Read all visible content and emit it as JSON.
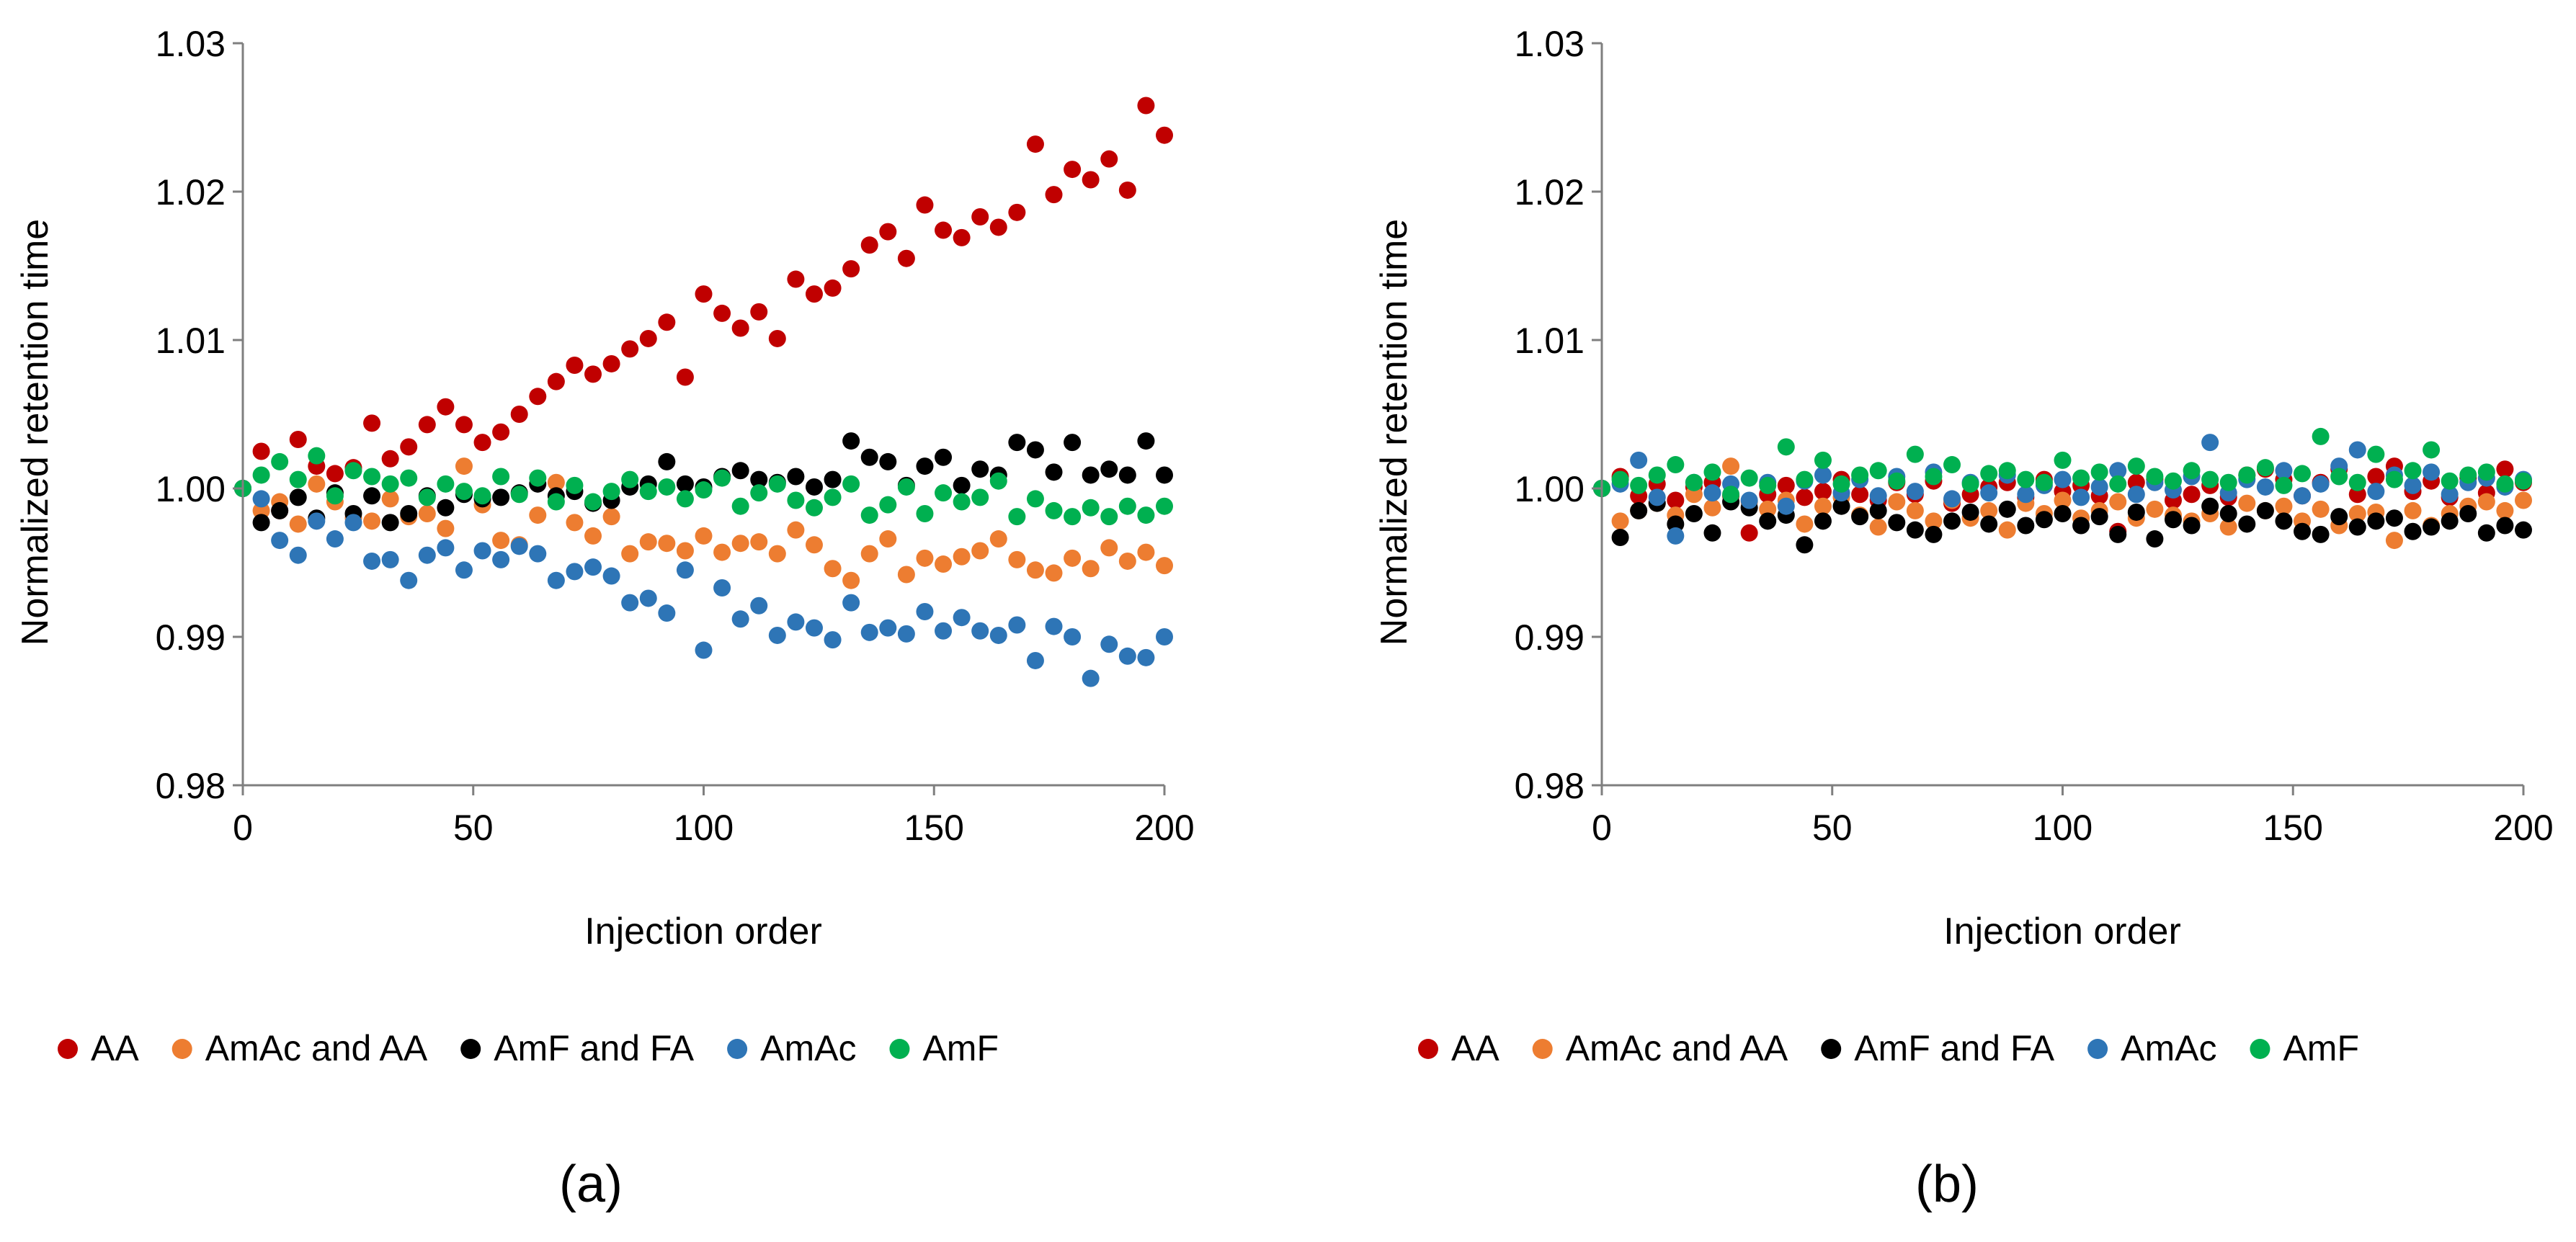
{
  "colors": {
    "AA": "#c00000",
    "AmAc and AA": "#ed7d31",
    "AmF and FA": "#000000",
    "AmAc": "#2e75b6",
    "AmF": "#00b050",
    "axis": "#7f7f7f"
  },
  "chart_data": [
    {
      "type": "scatter",
      "panel_label": "(a)",
      "xlabel": "Injection order",
      "ylabel": "Normalized retention time",
      "xlim": [
        0,
        200
      ],
      "ylim": [
        0.98,
        1.03
      ],
      "xticks": [
        0,
        50,
        100,
        150,
        200
      ],
      "xtick_labels": [
        "0",
        "50",
        "100",
        "150",
        "200"
      ],
      "yticks": [
        0.98,
        0.99,
        1.0,
        1.01,
        1.02,
        1.03
      ],
      "ytick_labels": [
        "0.98",
        "0.99",
        "1.00",
        "1.01",
        "1.02",
        "1.03"
      ],
      "grid": false,
      "legend_position": "bottom",
      "x": [
        0,
        4,
        8,
        12,
        16,
        20,
        24,
        28,
        32,
        36,
        40,
        44,
        48,
        52,
        56,
        60,
        64,
        68,
        72,
        76,
        80,
        84,
        88,
        92,
        96,
        100,
        104,
        108,
        112,
        116,
        120,
        124,
        128,
        132,
        136,
        140,
        144,
        148,
        152,
        156,
        160,
        164,
        168,
        172,
        176,
        180,
        184,
        188,
        192,
        196,
        200
      ],
      "series": [
        {
          "name": "AA",
          "values": [
            1.0,
            1.0025,
            0.9985,
            1.0033,
            1.0015,
            1.001,
            1.0014,
            1.0044,
            1.002,
            1.0028,
            1.0043,
            1.0055,
            1.0043,
            1.0031,
            1.0038,
            1.005,
            1.0062,
            1.0072,
            1.0083,
            1.0077,
            1.0084,
            1.0094,
            1.0101,
            1.0112,
            1.0075,
            1.0131,
            1.0118,
            1.0108,
            1.0119,
            1.0101,
            1.0141,
            1.0131,
            1.0135,
            1.0148,
            1.0164,
            1.0173,
            1.0155,
            1.0191,
            1.0174,
            1.0169,
            1.0183,
            1.0176,
            1.0186,
            1.0232,
            1.0198,
            1.0215,
            1.0208,
            1.0222,
            1.0201,
            1.0258,
            1.0238
          ]
        },
        {
          "name": "AmAc and AA",
          "values": [
            1.0,
            0.9985,
            0.9991,
            0.9976,
            1.0003,
            0.9991,
            0.998,
            0.9978,
            0.9993,
            0.9981,
            0.9983,
            0.9973,
            1.0015,
            0.9989,
            0.9965,
            0.9962,
            0.9982,
            1.0004,
            0.9977,
            0.9968,
            0.9981,
            0.9956,
            0.9964,
            0.9963,
            0.9958,
            0.9968,
            0.9957,
            0.9963,
            0.9964,
            0.9956,
            0.9972,
            0.9962,
            0.9946,
            0.9938,
            0.9956,
            0.9966,
            0.9942,
            0.9953,
            0.9949,
            0.9954,
            0.9958,
            0.9966,
            0.9952,
            0.9945,
            0.9943,
            0.9953,
            0.9946,
            0.996,
            0.9951,
            0.9957,
            0.9948
          ]
        },
        {
          "name": "AmF and FA",
          "values": [
            1.0,
            0.9977,
            0.9985,
            0.9994,
            0.998,
            0.9997,
            0.9983,
            0.9995,
            0.9977,
            0.9983,
            0.9995,
            0.9987,
            0.9996,
            0.9993,
            0.9994,
            0.9997,
            1.0003,
            0.9995,
            0.9998,
            0.999,
            0.9992,
            1.0001,
            1.0003,
            1.0018,
            1.0003,
            1.0001,
            1.0008,
            1.0012,
            1.0006,
            1.0004,
            1.0008,
            1.0001,
            1.0006,
            1.0032,
            1.0021,
            1.0018,
            1.0002,
            1.0015,
            1.0021,
            1.0002,
            1.0013,
            1.0009,
            1.0031,
            1.0026,
            1.0011,
            1.0031,
            1.0009,
            1.0013,
            1.0009,
            1.0032,
            1.0009
          ]
        },
        {
          "name": "AmAc",
          "values": [
            1.0,
            0.9993,
            0.9965,
            0.9955,
            0.9978,
            0.9966,
            0.9977,
            0.9951,
            0.9952,
            0.9938,
            0.9955,
            0.996,
            0.9945,
            0.9958,
            0.9952,
            0.9961,
            0.9956,
            0.9938,
            0.9944,
            0.9947,
            0.9941,
            0.9923,
            0.9926,
            0.9916,
            0.9945,
            0.9891,
            0.9933,
            0.9912,
            0.9921,
            0.9901,
            0.991,
            0.9906,
            0.9898,
            0.9923,
            0.9903,
            0.9906,
            0.9902,
            0.9917,
            0.9904,
            0.9913,
            0.9904,
            0.9901,
            0.9908,
            0.9884,
            0.9907,
            0.99,
            0.9872,
            0.9895,
            0.9887,
            0.9886,
            0.99
          ]
        },
        {
          "name": "AmF",
          "values": [
            1.0,
            1.0009,
            1.0018,
            1.0006,
            1.0022,
            0.9995,
            1.0012,
            1.0008,
            1.0003,
            1.0007,
            0.9994,
            1.0003,
            0.9998,
            0.9995,
            1.0008,
            0.9996,
            1.0007,
            0.9991,
            1.0002,
            0.9991,
            0.9998,
            1.0006,
            0.9998,
            1.0001,
            0.9993,
            0.9999,
            1.0007,
            0.9988,
            0.9997,
            1.0003,
            0.9992,
            0.9987,
            0.9994,
            1.0003,
            0.9982,
            0.9989,
            1.0001,
            0.9983,
            0.9997,
            0.9991,
            0.9994,
            1.0005,
            0.9981,
            0.9993,
            0.9985,
            0.9981,
            0.9987,
            0.9981,
            0.9988,
            0.9982,
            0.9988
          ]
        }
      ]
    },
    {
      "type": "scatter",
      "panel_label": "(b)",
      "xlabel": "Injection order",
      "ylabel": "Normalized retention time",
      "xlim": [
        0,
        200
      ],
      "ylim": [
        0.98,
        1.03
      ],
      "xticks": [
        0,
        50,
        100,
        150,
        200
      ],
      "xtick_labels": [
        "0",
        "50",
        "100",
        "150",
        "200"
      ],
      "yticks": [
        0.98,
        0.99,
        1.0,
        1.01,
        1.02,
        1.03
      ],
      "ytick_labels": [
        "0.98",
        "0.99",
        "1.00",
        "1.01",
        "1.02",
        "1.03"
      ],
      "grid": false,
      "legend_position": "bottom",
      "x": [
        0,
        4,
        8,
        12,
        16,
        20,
        24,
        28,
        32,
        36,
        40,
        44,
        48,
        52,
        56,
        60,
        64,
        68,
        72,
        76,
        80,
        84,
        88,
        92,
        96,
        100,
        104,
        108,
        112,
        116,
        120,
        124,
        128,
        132,
        136,
        140,
        144,
        148,
        152,
        156,
        160,
        164,
        168,
        172,
        176,
        180,
        184,
        188,
        192,
        196,
        200
      ],
      "series": [
        {
          "name": "AA",
          "values": [
            1.0,
            1.0008,
            0.9995,
            1.0003,
            0.9992,
            1.0001,
            1.0004,
            0.9995,
            0.997,
            0.9996,
            1.0002,
            0.9994,
            0.9998,
            1.0006,
            0.9996,
            0.9992,
            1.0004,
            0.9996,
            1.0005,
            0.999,
            0.9996,
            1.0001,
            1.0004,
            0.9994,
            1.0006,
            0.9998,
            1.0002,
            0.9995,
            0.9971,
            1.0004,
            1.0006,
            0.9992,
            0.9996,
            1.0002,
            0.9994,
            1.0009,
            1.0013,
            1.0006,
            0.9995,
            1.0004,
            1.0013,
            0.9996,
            1.0008,
            1.0015,
            0.9998,
            1.0005,
            0.9994,
            1.0007,
            0.9997,
            1.0013,
            1.0004
          ]
        },
        {
          "name": "AmAc and AA",
          "values": [
            1.0,
            0.9978,
            0.9985,
            0.999,
            0.9982,
            0.9996,
            0.9987,
            1.0015,
            0.9991,
            0.9986,
            0.9992,
            0.9976,
            0.9988,
            0.9994,
            0.9982,
            0.9974,
            0.9991,
            0.9985,
            0.9978,
            0.9992,
            0.998,
            0.9985,
            0.9972,
            0.999,
            0.9983,
            0.9992,
            0.998,
            0.9985,
            0.9991,
            0.998,
            0.9986,
            0.9982,
            0.9978,
            0.9983,
            0.9974,
            0.999,
            0.9985,
            0.9988,
            0.9978,
            0.9986,
            0.9975,
            0.9983,
            0.9984,
            0.9965,
            0.9985,
            0.9975,
            0.9983,
            0.9988,
            0.9991,
            0.9985,
            0.9992
          ]
        },
        {
          "name": "AmF and FA",
          "values": [
            1.0,
            0.9967,
            0.9985,
            0.999,
            0.9976,
            0.9983,
            0.997,
            0.9991,
            0.9987,
            0.9978,
            0.9982,
            0.9962,
            0.9978,
            0.9988,
            0.9981,
            0.9985,
            0.9977,
            0.9972,
            0.9969,
            0.9978,
            0.9984,
            0.9976,
            0.9986,
            0.9975,
            0.9979,
            0.9983,
            0.9975,
            0.9981,
            0.9969,
            0.9984,
            0.9966,
            0.9979,
            0.9975,
            0.9988,
            0.9983,
            0.9976,
            0.9985,
            0.9978,
            0.9971,
            0.9969,
            0.9981,
            0.9974,
            0.9978,
            0.998,
            0.9971,
            0.9974,
            0.9978,
            0.9983,
            0.997,
            0.9975,
            0.9972
          ]
        },
        {
          "name": "AmAc",
          "values": [
            1.0,
            1.0003,
            1.0019,
            0.9994,
            0.9968,
            1.0004,
            0.9997,
            1.0003,
            0.9992,
            1.0004,
            0.9988,
            1.0005,
            1.0009,
            0.9997,
            1.0006,
            0.9995,
            1.0008,
            0.9998,
            1.0011,
            0.9993,
            1.0004,
            0.9997,
            1.0009,
            0.9996,
            1.0002,
            1.0006,
            0.9994,
            1.0001,
            1.0012,
            0.9996,
            1.0004,
            0.9999,
            1.0008,
            1.0031,
            0.9997,
            1.0006,
            1.0001,
            1.0012,
            0.9995,
            1.0003,
            1.0015,
            1.0026,
            0.9998,
            1.0009,
            1.0002,
            1.0011,
            0.9996,
            1.0004,
            1.0007,
            1.0001,
            1.0006
          ]
        },
        {
          "name": "AmF",
          "values": [
            1.0,
            1.0006,
            1.0002,
            1.0009,
            1.0016,
            1.0004,
            1.0011,
            0.9996,
            1.0007,
            1.0002,
            1.0028,
            1.0006,
            1.0019,
            1.0003,
            1.0009,
            1.0012,
            1.0005,
            1.0023,
            1.0008,
            1.0016,
            1.0003,
            1.001,
            1.0012,
            1.0006,
            1.0004,
            1.0019,
            1.0007,
            1.0011,
            1.0003,
            1.0015,
            1.0008,
            1.0005,
            1.0012,
            1.0006,
            1.0004,
            1.0009,
            1.0014,
            1.0002,
            1.001,
            1.0035,
            1.0008,
            1.0004,
            1.0023,
            1.0006,
            1.0012,
            1.0026,
            1.0005,
            1.0009,
            1.0011,
            1.0003,
            1.0005
          ]
        }
      ]
    }
  ]
}
